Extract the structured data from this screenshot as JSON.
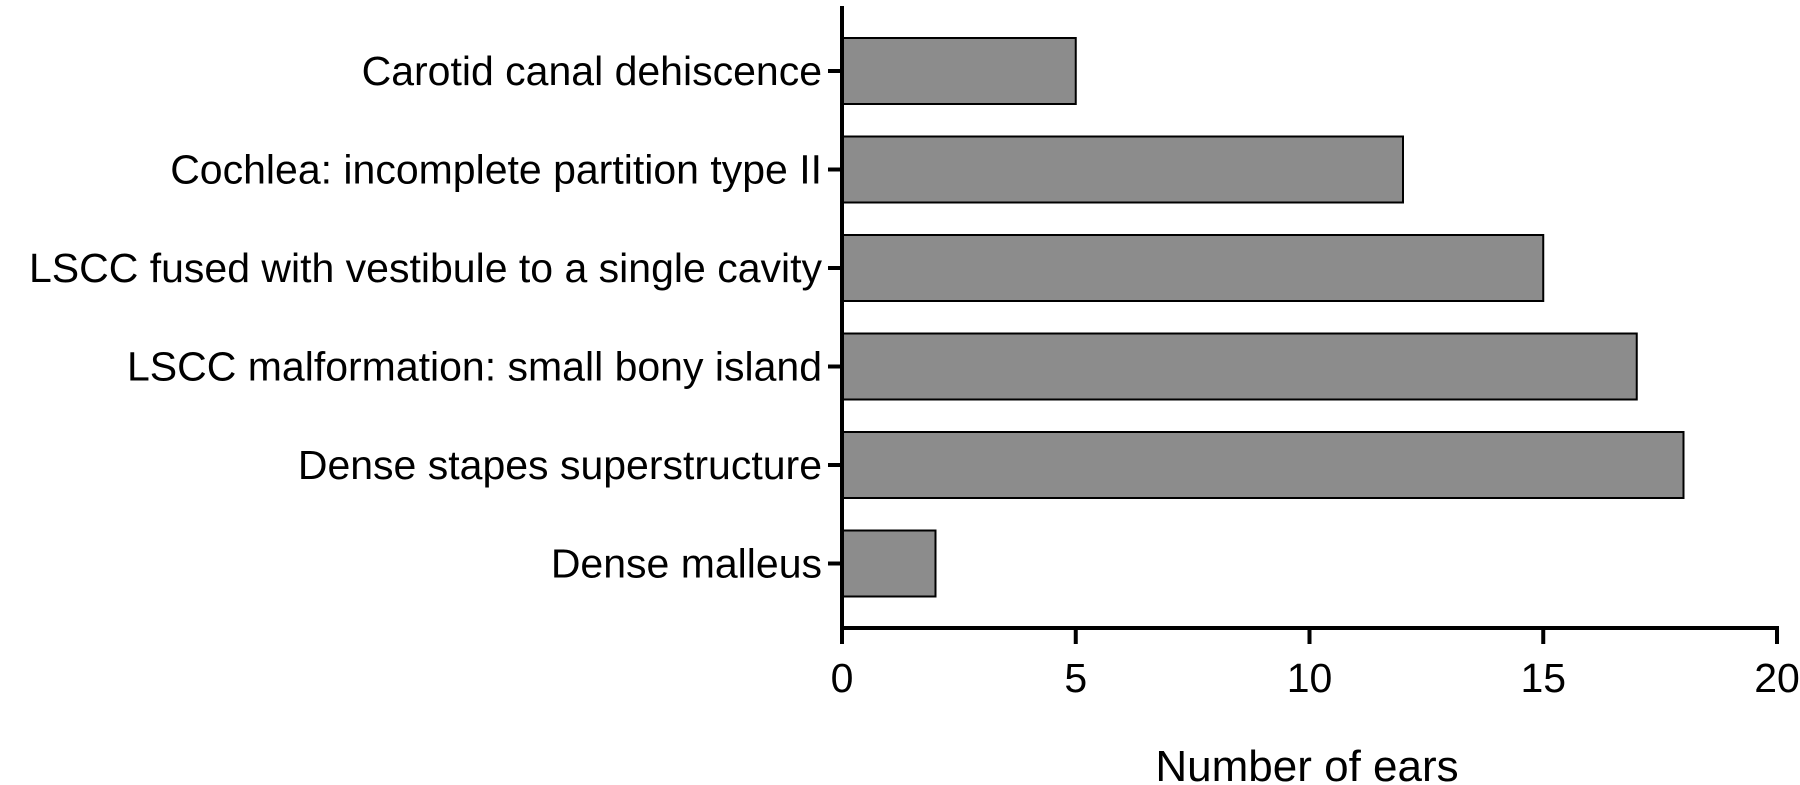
{
  "chart_data": {
    "type": "bar",
    "orientation": "horizontal",
    "title": "",
    "xlabel": "Number of ears",
    "ylabel": "",
    "categories": [
      "Carotid canal dehiscence",
      "Cochlea: incomplete partition type II",
      "LSCC fused with vestibule to a single cavity",
      "LSCC malformation: small bony island",
      "Dense stapes superstructure",
      "Dense malleus"
    ],
    "values": [
      5,
      12,
      15,
      17,
      18,
      2
    ],
    "xlim": [
      0,
      20
    ],
    "xticks": [
      "0",
      "5",
      "10",
      "15",
      "20"
    ],
    "grid": false,
    "legend": "none",
    "colors": {
      "bar_fill": "#8c8c8c",
      "bar_stroke": "#000000",
      "axis": "#000000"
    }
  }
}
